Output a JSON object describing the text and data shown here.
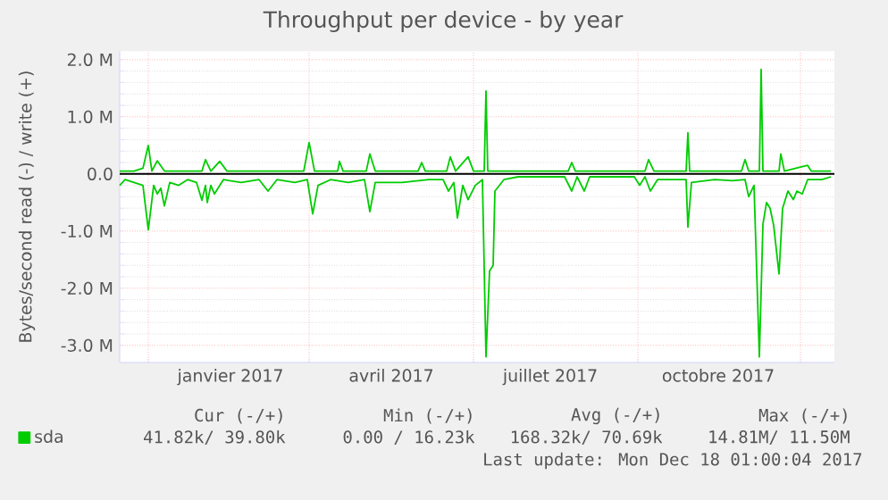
{
  "chart_data": {
    "type": "line",
    "title": "Throughput per device - by year",
    "ylabel": "Bytes/second read (-) / write (+)",
    "xlim": [
      "2016-11-15",
      "2017-12-20"
    ],
    "ylim": [
      -3.3,
      2.15
    ],
    "xticks": [
      {
        "value": "2016-12-01",
        "label": null
      },
      {
        "value": "2017-03-01",
        "label": null
      },
      {
        "value": "2017-06-01",
        "label": null
      },
      {
        "value": "2017-09-01",
        "label": null
      },
      {
        "value": "2017-12-01",
        "label": null
      },
      {
        "value": "2017-01-16",
        "label": "janvier 2017"
      },
      {
        "value": "2017-04-16",
        "label": "avril 2017"
      },
      {
        "value": "2017-07-14",
        "label": "juillet 2017"
      },
      {
        "value": "2017-10-16",
        "label": "octobre 2017"
      }
    ],
    "yticks": [
      {
        "value": 2.0,
        "label": "2.0 M"
      },
      {
        "value": 1.0,
        "label": "1.0 M"
      },
      {
        "value": 0.0,
        "label": "0.0"
      },
      {
        "value": -1.0,
        "label": "-1.0 M"
      },
      {
        "value": -2.0,
        "label": "-2.0 M"
      },
      {
        "value": -3.0,
        "label": "-3.0 M"
      }
    ],
    "grid": true,
    "legend": "bottom left",
    "ref_lines": [
      {
        "axis": "y",
        "value": 0,
        "color": "#000000"
      }
    ],
    "series": [
      {
        "name": "sda",
        "color": "#00cc00",
        "x": [
          "2016-11-15",
          "2016-11-23",
          "2016-11-28",
          "2016-12-01",
          "2016-12-03",
          "2016-12-06",
          "2016-12-10",
          "2016-12-31",
          "2017-01-02",
          "2017-01-05",
          "2017-01-10",
          "2017-01-14",
          "2017-02-26",
          "2017-03-01",
          "2017-03-04",
          "2017-03-17",
          "2017-03-18",
          "2017-03-20",
          "2017-04-02",
          "2017-04-04",
          "2017-04-07",
          "2017-05-01",
          "2017-05-03",
          "2017-05-05",
          "2017-05-17",
          "2017-05-19",
          "2017-05-22",
          "2017-05-29",
          "2017-06-01",
          "2017-06-07",
          "2017-06-08",
          "2017-06-09",
          "2017-07-24",
          "2017-07-26",
          "2017-07-28",
          "2017-09-05",
          "2017-09-07",
          "2017-09-10",
          "2017-09-28",
          "2017-09-29",
          "2017-09-30",
          "2017-10-29",
          "2017-10-31",
          "2017-11-02",
          "2017-11-08",
          "2017-11-09",
          "2017-11-10",
          "2017-11-19",
          "2017-11-20",
          "2017-11-22",
          "2017-12-05",
          "2017-12-07",
          "2017-12-18"
        ],
        "values": [
          0.05,
          0.05,
          0.1,
          0.5,
          0.05,
          0.23,
          0.05,
          0.05,
          0.25,
          0.05,
          0.22,
          0.05,
          0.05,
          0.55,
          0.05,
          0.05,
          0.22,
          0.05,
          0.05,
          0.35,
          0.05,
          0.05,
          0.2,
          0.05,
          0.05,
          0.3,
          0.05,
          0.3,
          0.05,
          0.05,
          1.45,
          0.05,
          0.05,
          0.2,
          0.05,
          0.05,
          0.25,
          0.05,
          0.05,
          0.72,
          0.05,
          0.05,
          0.25,
          0.05,
          0.05,
          1.83,
          0.05,
          0.05,
          0.35,
          0.05,
          0.15,
          0.05,
          0.05
        ]
      },
      {
        "color": "#00cc00",
        "x": [
          "2016-11-15",
          "2016-11-18",
          "2016-11-23",
          "2016-11-28",
          "2016-12-01",
          "2016-12-04",
          "2016-12-06",
          "2016-12-08",
          "2016-12-10",
          "2016-12-13",
          "2016-12-18",
          "2016-12-23",
          "2016-12-28",
          "2016-12-31",
          "2017-01-02",
          "2017-01-03",
          "2017-01-05",
          "2017-01-07",
          "2017-01-12",
          "2017-01-22",
          "2017-02-01",
          "2017-02-06",
          "2017-02-11",
          "2017-02-21",
          "2017-02-28",
          "2017-03-03",
          "2017-03-06",
          "2017-03-13",
          "2017-03-23",
          "2017-04-01",
          "2017-04-04",
          "2017-04-07",
          "2017-04-22",
          "2017-05-07",
          "2017-05-15",
          "2017-05-18",
          "2017-05-21",
          "2017-05-23",
          "2017-05-26",
          "2017-05-29",
          "2017-06-02",
          "2017-06-06",
          "2017-06-08",
          "2017-06-10",
          "2017-06-12",
          "2017-06-13",
          "2017-06-18",
          "2017-06-26",
          "2017-07-22",
          "2017-07-26",
          "2017-07-29",
          "2017-08-02",
          "2017-08-05",
          "2017-08-30",
          "2017-09-02",
          "2017-09-05",
          "2017-09-08",
          "2017-09-12",
          "2017-09-28",
          "2017-09-29",
          "2017-10-01",
          "2017-10-14",
          "2017-10-24",
          "2017-10-31",
          "2017-11-02",
          "2017-11-05",
          "2017-11-08",
          "2017-11-10",
          "2017-11-12",
          "2017-11-14",
          "2017-11-16",
          "2017-11-19",
          "2017-11-21",
          "2017-11-24",
          "2017-11-27",
          "2017-11-29",
          "2017-12-02",
          "2017-12-05",
          "2017-12-13",
          "2017-12-18"
        ],
        "values": [
          -0.2,
          -0.1,
          -0.15,
          -0.2,
          -0.98,
          -0.2,
          -0.35,
          -0.25,
          -0.56,
          -0.15,
          -0.2,
          -0.1,
          -0.15,
          -0.46,
          -0.2,
          -0.5,
          -0.2,
          -0.35,
          -0.1,
          -0.15,
          -0.1,
          -0.3,
          -0.1,
          -0.15,
          -0.1,
          -0.7,
          -0.2,
          -0.1,
          -0.15,
          -0.1,
          -0.66,
          -0.15,
          -0.15,
          -0.1,
          -0.1,
          -0.3,
          -0.15,
          -0.77,
          -0.2,
          -0.45,
          -0.2,
          -0.1,
          -3.2,
          -1.7,
          -1.6,
          -0.3,
          -0.1,
          -0.05,
          -0.05,
          -0.3,
          -0.05,
          -0.3,
          -0.05,
          -0.05,
          -0.2,
          -0.05,
          -0.3,
          -0.1,
          -0.1,
          -0.93,
          -0.15,
          -0.1,
          -0.12,
          -0.1,
          -0.4,
          -0.2,
          -3.2,
          -0.88,
          -0.5,
          -0.6,
          -0.9,
          -1.75,
          -0.6,
          -0.3,
          -0.45,
          -0.3,
          -0.35,
          -0.1,
          -0.1,
          -0.05
        ]
      }
    ],
    "annotations": [
      "Cur (-/+)",
      "Min (-/+)",
      "Avg (-/+)",
      "Max (-/+)",
      "41.82k/ 39.80k",
      "0.00 / 16.23k",
      "168.32k/ 70.69k",
      "14.81M/ 11.50M",
      "Last update: Mon Dec 18 01:00:04 2017"
    ]
  }
}
